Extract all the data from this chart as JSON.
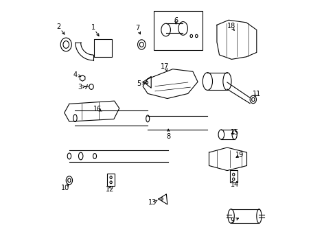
{
  "background_color": "#ffffff",
  "line_color": "#000000",
  "label_color": "#000000",
  "fig_width": 4.89,
  "fig_height": 3.6,
  "dpi": 100,
  "parts_labels": {
    "2": [
      0.055,
      0.895,
      0.085,
      0.855
    ],
    "1": [
      0.195,
      0.892,
      0.225,
      0.848
    ],
    "7": [
      0.375,
      0.89,
      0.393,
      0.855
    ],
    "6": [
      0.533,
      0.92,
      0.533,
      0.905
    ],
    "18": [
      0.758,
      0.898,
      0.772,
      0.878
    ],
    "4": [
      0.122,
      0.698,
      0.148,
      0.692
    ],
    "3": [
      0.142,
      0.648,
      0.165,
      0.652
    ],
    "5": [
      0.383,
      0.662,
      0.408,
      0.667
    ],
    "17": [
      0.488,
      0.732,
      0.498,
      0.712
    ],
    "11": [
      0.862,
      0.62,
      0.853,
      0.608
    ],
    "16": [
      0.212,
      0.558,
      0.232,
      0.55
    ],
    "8": [
      0.502,
      0.448,
      0.502,
      0.488
    ],
    "15": [
      0.772,
      0.464,
      0.758,
      0.458
    ],
    "10": [
      0.082,
      0.238,
      0.098,
      0.253
    ],
    "12": [
      0.263,
      0.23,
      0.268,
      0.247
    ],
    "13": [
      0.438,
      0.178,
      0.465,
      0.19
    ],
    "19": [
      0.793,
      0.37,
      0.776,
      0.36
    ],
    "14": [
      0.773,
      0.252,
      0.768,
      0.264
    ],
    "9": [
      0.762,
      0.102,
      0.798,
      0.118
    ]
  }
}
